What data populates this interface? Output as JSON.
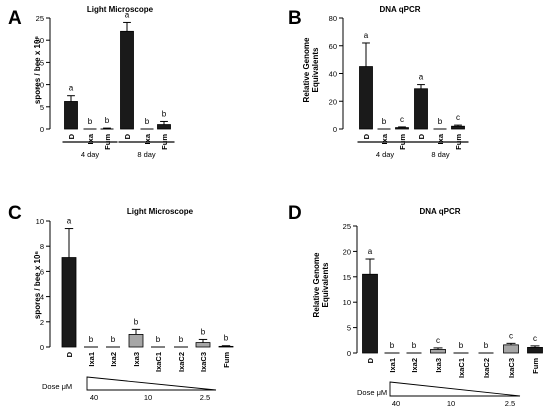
{
  "figure": {
    "panels": [
      "A",
      "B",
      "C",
      "D"
    ]
  },
  "chart_data": [
    {
      "panel": "A",
      "type": "bar",
      "title": "Light Microscope",
      "ylabel": "spores / bee x 10⁶",
      "ylim": [
        0,
        25
      ],
      "yticks": [
        0,
        5,
        10,
        15,
        20,
        25
      ],
      "categories": [
        "D",
        "Ixa",
        "Fum",
        "D",
        "Ixa",
        "Fum"
      ],
      "values": [
        6.2,
        0,
        0.1,
        22.0,
        0,
        1.0
      ],
      "errors": [
        1.3,
        0,
        0.1,
        2.0,
        0,
        0.7
      ],
      "colors": [
        "#1a1a1a",
        "#1a1a1a",
        "#1a1a1a",
        "#1a1a1a",
        "#1a1a1a",
        "#1a1a1a"
      ],
      "sig_letters": [
        "a",
        "b",
        "b",
        "a",
        "b",
        "b"
      ],
      "groups": [
        {
          "label": "4 day",
          "from": 0,
          "to": 2
        },
        {
          "label": "8 day",
          "from": 3,
          "to": 5
        }
      ]
    },
    {
      "panel": "B",
      "type": "bar",
      "title": "DNA qPCR",
      "ylabel": "Relative Genome Equivalents",
      "ylim": [
        0,
        80
      ],
      "yticks": [
        0,
        20,
        40,
        60,
        80
      ],
      "categories": [
        "D",
        "Ixa",
        "Fum",
        "D",
        "Ixa",
        "Fum"
      ],
      "values": [
        45,
        0,
        1.0,
        29,
        0,
        2.0
      ],
      "errors": [
        17,
        0,
        0.5,
        3,
        0,
        0.8
      ],
      "colors": [
        "#1a1a1a",
        "#1a1a1a",
        "#1a1a1a",
        "#1a1a1a",
        "#1a1a1a",
        "#1a1a1a"
      ],
      "sig_letters": [
        "a",
        "b",
        "c",
        "a",
        "b",
        "c"
      ],
      "groups": [
        {
          "label": "4 day",
          "from": 0,
          "to": 2
        },
        {
          "label": "8 day",
          "from": 3,
          "to": 5
        }
      ]
    },
    {
      "panel": "C",
      "type": "bar",
      "title": "Light Microscope",
      "ylabel": "spores / bee x 10⁶",
      "ylim": [
        0,
        10
      ],
      "yticks": [
        0,
        2,
        4,
        6,
        8,
        10
      ],
      "categories": [
        "D",
        "Ixa1",
        "Ixa2",
        "Ixa3",
        "IxaC1",
        "IxaC2",
        "IxaC3",
        "Fum"
      ],
      "values": [
        7.1,
        0,
        0,
        1.0,
        0,
        0,
        0.35,
        0.05
      ],
      "errors": [
        2.3,
        0,
        0,
        0.4,
        0,
        0,
        0.25,
        0.05
      ],
      "colors": [
        "#1a1a1a",
        "#1a1a1a",
        "#1a1a1a",
        "#a6a6a6",
        "#1a1a1a",
        "#1a1a1a",
        "#a6a6a6",
        "#1a1a1a"
      ],
      "sig_letters": [
        "a",
        "b",
        "b",
        "b",
        "b",
        "b",
        "b",
        "b"
      ],
      "dose": {
        "label": "Dose μM",
        "values": [
          "40",
          "10",
          "2.5"
        ]
      }
    },
    {
      "panel": "D",
      "type": "bar",
      "title": "DNA qPCR",
      "ylabel": "Relative Genome Equivalents",
      "ylim": [
        0,
        25
      ],
      "yticks": [
        0,
        5,
        10,
        15,
        20,
        25
      ],
      "categories": [
        "D",
        "Ixa1",
        "Ixa2",
        "Ixa3",
        "IxaC1",
        "IxaC2",
        "IxaC3",
        "Fum"
      ],
      "values": [
        15.5,
        0,
        0,
        0.7,
        0,
        0,
        1.6,
        1.1
      ],
      "errors": [
        3.0,
        0,
        0,
        0.3,
        0,
        0,
        0.3,
        0.3
      ],
      "colors": [
        "#1a1a1a",
        "#1a1a1a",
        "#1a1a1a",
        "#a6a6a6",
        "#1a1a1a",
        "#1a1a1a",
        "#a6a6a6",
        "#1a1a1a"
      ],
      "sig_letters": [
        "a",
        "b",
        "b",
        "c",
        "b",
        "b",
        "c",
        "c"
      ],
      "dose": {
        "label": "Dose μM",
        "values": [
          "40",
          "10",
          "2.5"
        ]
      }
    }
  ]
}
